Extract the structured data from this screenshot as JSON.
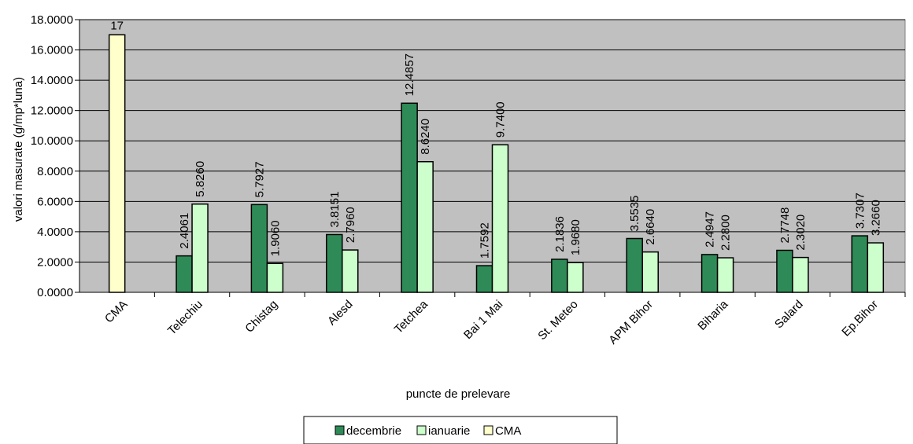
{
  "chart_data": {
    "type": "bar",
    "xlabel": "puncte de prelevare",
    "ylabel": "valori masurate (g/mp*luna)",
    "ylim": [
      0,
      18
    ],
    "ytick_labels": [
      "0.0000",
      "2.0000",
      "4.0000",
      "6.0000",
      "8.0000",
      "10.0000",
      "12.0000",
      "14.0000",
      "16.0000",
      "18.0000"
    ],
    "categories": [
      "CMA",
      "Telechiu",
      "Chistag",
      "Alesd",
      "Tetchea",
      "Bai 1 Mai",
      "St. Meteo",
      "APM Bihor",
      "Biharia",
      "Salard",
      "Ep.Bihor"
    ],
    "series": [
      {
        "name": "decembrie",
        "color": "#2e8b57",
        "values": [
          null,
          2.4061,
          5.7927,
          3.8151,
          12.4857,
          1.7592,
          2.1836,
          3.5535,
          2.4947,
          2.7748,
          3.7307
        ],
        "labels": [
          "",
          "2.4061",
          "5.7927",
          "3.8151",
          "12.4857",
          "1.7592",
          "2.1836",
          "3.5535",
          "2.4947",
          "2.7748",
          "3.7307"
        ]
      },
      {
        "name": "ianuarie",
        "color": "#ccffcc",
        "values": [
          null,
          5.826,
          1.906,
          2.796,
          8.624,
          9.74,
          1.968,
          2.664,
          2.28,
          2.302,
          3.266
        ],
        "labels": [
          "",
          "5.8260",
          "1.9060",
          "2.7960",
          "8.6240",
          "9.7400",
          "1.9680",
          "2.6640",
          "2.2800",
          "2.3020",
          "3.2660"
        ]
      },
      {
        "name": "CMA",
        "color": "#ffffcc",
        "values": [
          17,
          null,
          null,
          null,
          null,
          null,
          null,
          null,
          null,
          null,
          null
        ],
        "labels": [
          "17",
          "",
          "",
          "",
          "",
          "",
          "",
          "",
          "",
          "",
          ""
        ]
      }
    ],
    "legend_position": "bottom",
    "grid": true,
    "plot_background": "#c0c0c0"
  }
}
